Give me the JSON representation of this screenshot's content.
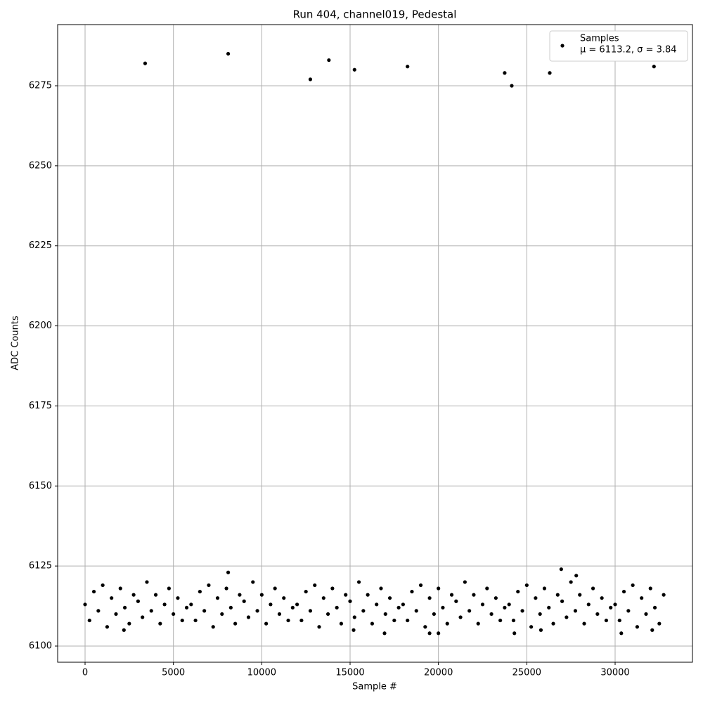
{
  "chart_data": {
    "type": "scatter",
    "title": "Run 404, channel019, Pedestal",
    "x_label": "Sample #",
    "y_label": "ADC Counts",
    "xlim": [
      -1552,
      34377
    ],
    "ylim": [
      6094.95,
      6294.1
    ],
    "xticks": [
      0,
      5000,
      10000,
      15000,
      20000,
      25000,
      30000
    ],
    "yticks": [
      6100,
      6125,
      6150,
      6175,
      6200,
      6225,
      6250,
      6275
    ],
    "grid": true,
    "legend_position": "upper right",
    "legend_note": "μ = 6113.2, σ = 3.84",
    "series": [
      {
        "name": "Samples",
        "color": "#000000",
        "x": [
          0,
          250,
          500,
          750,
          1000,
          1250,
          1500,
          1750,
          2000,
          2250,
          2500,
          2750,
          3000,
          3250,
          3500,
          3750,
          4000,
          4250,
          4500,
          4750,
          5000,
          5250,
          5500,
          5750,
          6000,
          6250,
          6500,
          6750,
          7000,
          7250,
          7500,
          7750,
          8000,
          8250,
          8500,
          8750,
          9000,
          9250,
          9500,
          9750,
          10000,
          10250,
          10500,
          10750,
          11000,
          11250,
          11500,
          11750,
          12000,
          12250,
          12500,
          12750,
          13000,
          13250,
          13500,
          13750,
          14000,
          14250,
          14500,
          14750,
          15000,
          15250,
          15500,
          15750,
          16000,
          16250,
          16500,
          16750,
          17000,
          17250,
          17500,
          17750,
          18000,
          18250,
          18500,
          18750,
          19000,
          19250,
          19500,
          19750,
          20000,
          20250,
          20500,
          20750,
          21000,
          21250,
          21500,
          21750,
          22000,
          22250,
          22500,
          22750,
          23000,
          23250,
          23500,
          23750,
          24000,
          24250,
          24500,
          24750,
          25000,
          25250,
          25500,
          25750,
          26000,
          26250,
          26500,
          26750,
          27000,
          27250,
          27500,
          27750,
          28000,
          28250,
          28500,
          28750,
          29000,
          29250,
          29500,
          29750,
          30000,
          30250,
          30500,
          30750,
          31000,
          31250,
          31500,
          31750,
          32000,
          32250,
          32500,
          32750,
          8100,
          26950,
          27800,
          2200,
          16950,
          19500,
          20000,
          24300,
          30350,
          15200,
          25800,
          32100,
          3400,
          8100,
          12750,
          13800,
          15250,
          18250,
          23750,
          24150,
          26300,
          32200
        ],
        "values": [
          6113,
          6108,
          6117,
          6111,
          6119,
          6106,
          6115,
          6110,
          6118,
          6112,
          6107,
          6116,
          6114,
          6109,
          6120,
          6111,
          6116,
          6107,
          6113,
          6118,
          6110,
          6115,
          6108,
          6112,
          6113,
          6108,
          6117,
          6111,
          6119,
          6106,
          6115,
          6110,
          6118,
          6112,
          6107,
          6116,
          6114,
          6109,
          6120,
          6111,
          6116,
          6107,
          6113,
          6118,
          6110,
          6115,
          6108,
          6112,
          6113,
          6108,
          6117,
          6111,
          6119,
          6106,
          6115,
          6110,
          6118,
          6112,
          6107,
          6116,
          6114,
          6109,
          6120,
          6111,
          6116,
          6107,
          6113,
          6118,
          6110,
          6115,
          6108,
          6112,
          6113,
          6108,
          6117,
          6111,
          6119,
          6106,
          6115,
          6110,
          6118,
          6112,
          6107,
          6116,
          6114,
          6109,
          6120,
          6111,
          6116,
          6107,
          6113,
          6118,
          6110,
          6115,
          6108,
          6112,
          6113,
          6108,
          6117,
          6111,
          6119,
          6106,
          6115,
          6110,
          6118,
          6112,
          6107,
          6116,
          6114,
          6109,
          6120,
          6111,
          6116,
          6107,
          6113,
          6118,
          6110,
          6115,
          6108,
          6112,
          6113,
          6108,
          6117,
          6111,
          6119,
          6106,
          6115,
          6110,
          6118,
          6112,
          6107,
          6116,
          6123,
          6124,
          6122,
          6105,
          6104,
          6104,
          6104,
          6104,
          6104,
          6105,
          6105,
          6105,
          6282,
          6285,
          6277,
          6283,
          6280,
          6281,
          6279,
          6275,
          6279,
          6281
        ]
      }
    ]
  }
}
